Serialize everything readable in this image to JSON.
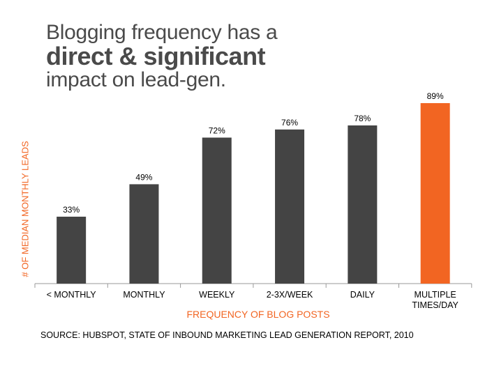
{
  "title": {
    "line1": "Blogging frequency has a",
    "line2": "direct & significant",
    "line3": "impact on lead-gen."
  },
  "source": "SOURCE: HUBSPOT, STATE OF INBOUND MARKETING LEAD GENERATION REPORT, 2010",
  "colors": {
    "bar": "#444444",
    "highlight": "#f26522",
    "accent_text": "#f26522",
    "axis": "#999999"
  },
  "chart_data": {
    "type": "bar",
    "categories": [
      "< MONTHLY",
      "MONTHLY",
      "WEEKLY",
      "2-3X/WEEK",
      "DAILY",
      "MULTIPLE TIMES/DAY"
    ],
    "category_lines": [
      [
        "< MONTHLY"
      ],
      [
        "MONTHLY"
      ],
      [
        "WEEKLY"
      ],
      [
        "2-3X/WEEK"
      ],
      [
        "DAILY"
      ],
      [
        "MULTIPLE",
        "TIMES/DAY"
      ]
    ],
    "values": [
      33,
      49,
      72,
      76,
      78,
      89
    ],
    "data_labels": [
      "33%",
      "49%",
      "72%",
      "76%",
      "78%",
      "89%"
    ],
    "highlight_index": 5,
    "xlabel": "FREQUENCY OF BLOG POSTS",
    "ylabel": "# OF MEDIAN MONTHLY LEADS",
    "ylim": [
      0,
      100
    ],
    "grid": false,
    "legend": "none"
  }
}
